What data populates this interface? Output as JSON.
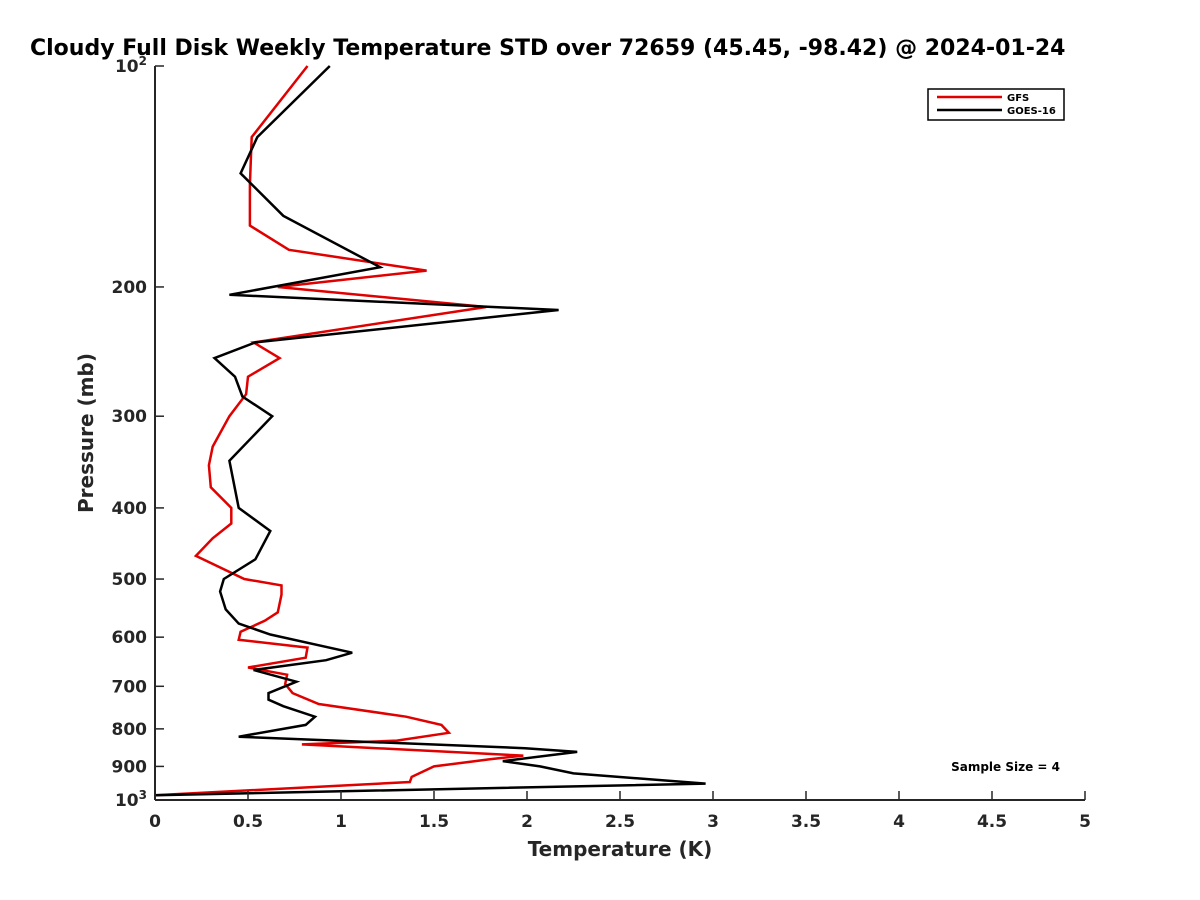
{
  "chart_data": {
    "type": "line",
    "title": "Cloudy Full Disk Weekly Temperature STD over 72659 (45.45, -98.42) @ 2024-01-24",
    "xlabel": "Temperature (K)",
    "ylabel": "Pressure (mb)",
    "xlim": [
      0,
      5
    ],
    "ylim": [
      100,
      1000
    ],
    "y_scale": "log",
    "y_reversed": true,
    "grid": false,
    "legend_position": "top-right",
    "x_ticks": [
      "0",
      "0.5",
      "1",
      "1.5",
      "2",
      "2.5",
      "3",
      "3.5",
      "4",
      "4.5",
      "5"
    ],
    "x_tick_values": [
      0,
      0.5,
      1,
      1.5,
      2,
      2.5,
      3,
      3.5,
      4,
      4.5,
      5
    ],
    "y_ticks": [
      {
        "label": "200",
        "value": 200
      },
      {
        "label": "300",
        "value": 300
      },
      {
        "label": "400",
        "value": 400
      },
      {
        "label": "500",
        "value": 500
      },
      {
        "label": "600",
        "value": 600
      },
      {
        "label": "700",
        "value": 700
      },
      {
        "label": "800",
        "value": 800
      },
      {
        "label": "900",
        "value": 900
      }
    ],
    "y_ticks_power": [
      {
        "base": "10",
        "exp": "2",
        "value": 100
      },
      {
        "base": "10",
        "exp": "3",
        "value": 1000
      }
    ],
    "series": [
      {
        "name": "GFS",
        "color": "#e00000",
        "x": [
          0.82,
          0.52,
          0.51,
          0.51,
          0.72,
          1.46,
          0.66,
          1.78,
          0.53,
          0.67,
          0.5,
          0.49,
          0.4,
          0.31,
          0.29,
          0.3,
          0.41,
          0.41,
          0.31,
          0.22,
          0.48,
          0.68,
          0.68,
          0.66,
          0.59,
          0.46,
          0.45,
          0.82,
          0.81,
          0.5,
          0.71,
          0.7,
          0.74,
          0.88,
          1.35,
          1.54,
          1.58,
          1.3,
          0.79,
          1.98,
          1.8,
          1.5,
          1.38,
          1.37,
          0.0
        ],
        "y": [
          100,
          125,
          145,
          165,
          178,
          190,
          200,
          213,
          238,
          250,
          265,
          280,
          300,
          330,
          350,
          375,
          400,
          420,
          440,
          465,
          500,
          510,
          525,
          555,
          570,
          590,
          605,
          620,
          640,
          660,
          675,
          695,
          715,
          740,
          770,
          790,
          810,
          830,
          840,
          870,
          880,
          900,
          930,
          945,
          985
        ]
      },
      {
        "name": "GOES-16",
        "color": "#000000",
        "x": [
          0.94,
          0.55,
          0.46,
          0.69,
          1.21,
          0.4,
          2.17,
          0.54,
          0.32,
          0.43,
          0.47,
          0.63,
          0.4,
          0.45,
          0.62,
          0.54,
          0.37,
          0.35,
          0.38,
          0.45,
          0.62,
          1.06,
          0.92,
          0.53,
          0.76,
          0.61,
          0.61,
          0.69,
          0.86,
          0.81,
          0.45,
          1.99,
          2.27,
          1.87,
          2.07,
          2.25,
          2.96,
          0.0
        ],
        "y": [
          100,
          125,
          140,
          160,
          188,
          205,
          215,
          238,
          250,
          265,
          282,
          300,
          345,
          400,
          430,
          470,
          500,
          520,
          550,
          575,
          595,
          630,
          645,
          665,
          690,
          715,
          730,
          745,
          770,
          790,
          820,
          850,
          860,
          885,
          900,
          920,
          950,
          985
        ]
      }
    ],
    "annotations": [
      {
        "text": "Sample Size = 4",
        "position": "bottom-right"
      }
    ]
  }
}
